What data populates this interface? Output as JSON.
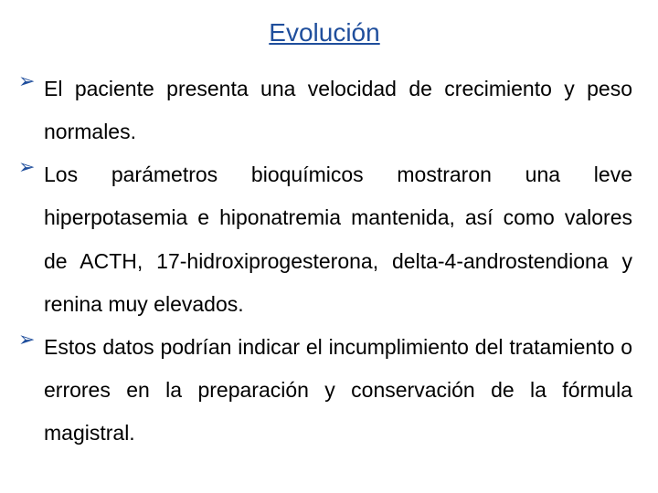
{
  "title": {
    "text": "Evolución",
    "color": "#1f4e9c",
    "fontsize": 28,
    "font_weight": "400"
  },
  "bullet_marker": {
    "glyph": "➢",
    "color": "#1f4e9c",
    "fontsize": 22
  },
  "body_text": {
    "color": "#000000",
    "fontsize": 23,
    "line_height": 2.05
  },
  "items": [
    "El paciente presenta una velocidad de crecimiento y peso normales.",
    "Los parámetros bioquímicos mostraron una leve hiperpotasemia e hiponatremia mantenida, así como valores de ACTH, 17-hidroxiprogesterona, delta-4-androstendiona y renina muy elevados.",
    "Estos datos podrían indicar el incumplimiento del tratamiento o errores en la preparación y conservación de la fórmula magistral."
  ],
  "background_color": "#ffffff"
}
